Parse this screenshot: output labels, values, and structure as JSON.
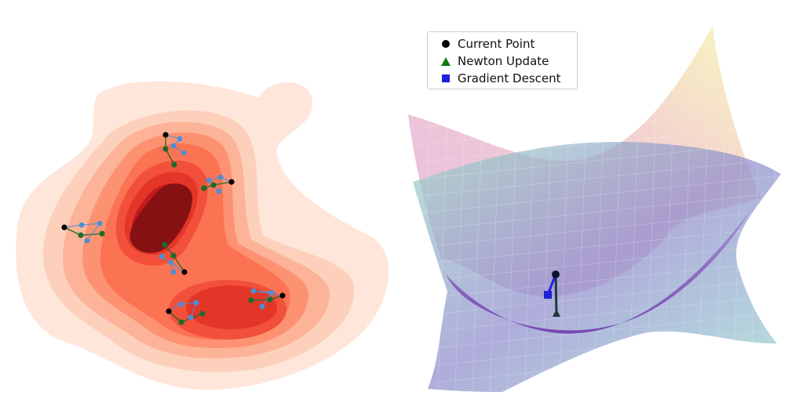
{
  "legend": {
    "items": [
      {
        "label": "Current Point",
        "marker": "circle",
        "color": "#000000"
      },
      {
        "label": "Newton Update",
        "marker": "triangle",
        "color": "#117a11"
      },
      {
        "label": "Gradient Descent",
        "marker": "square",
        "color": "#1f1fe0"
      }
    ]
  },
  "colors": {
    "contour_levels": [
      "#fee6da",
      "#fdd0bc",
      "#fcb398",
      "#fc9272",
      "#fb7352",
      "#f2503a",
      "#e33628",
      "#c5191c",
      "#861113"
    ],
    "gradient_point": "#4a90d9",
    "newton_point": "#1d6b2a",
    "current_point": "#000000",
    "surface_upper": [
      "#f7f7b0",
      "#f3b9c2",
      "#d9a6d6"
    ],
    "surface_lower": [
      "#8fd8c8",
      "#8f8fd0",
      "#7f4bb0"
    ]
  }
}
